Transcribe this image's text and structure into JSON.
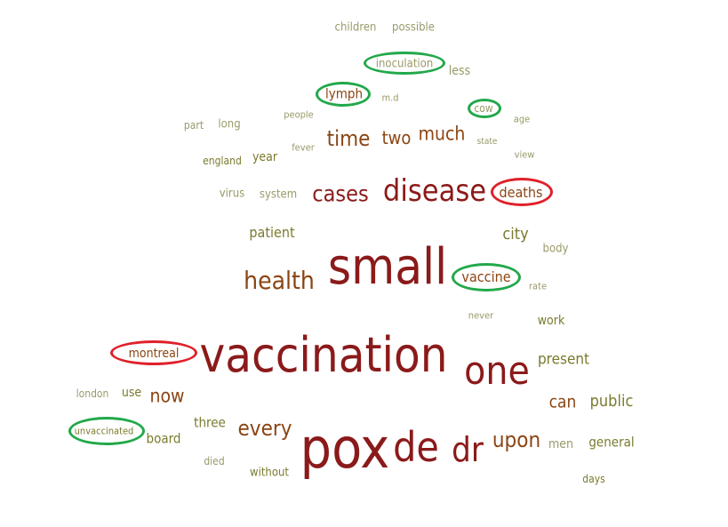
{
  "word_cloud": {
    "colors": {
      "large": "#8b1a1a",
      "medium": "#8b4513",
      "small": "#7a7a2e",
      "faint": "#9a9a6a",
      "highlight_green": "#22a84a",
      "highlight_red": "#e0202a"
    },
    "words": [
      {
        "id": "children",
        "text": "children"
      },
      {
        "id": "possible",
        "text": "possible"
      },
      {
        "id": "inoculation",
        "text": "inoculation"
      },
      {
        "id": "less",
        "text": "less"
      },
      {
        "id": "lymph",
        "text": "lymph"
      },
      {
        "id": "md",
        "text": "m.d"
      },
      {
        "id": "cow",
        "text": "cow"
      },
      {
        "id": "people",
        "text": "people"
      },
      {
        "id": "age",
        "text": "age"
      },
      {
        "id": "part",
        "text": "part"
      },
      {
        "id": "long",
        "text": "long"
      },
      {
        "id": "time",
        "text": "time"
      },
      {
        "id": "two",
        "text": "two"
      },
      {
        "id": "much",
        "text": "much"
      },
      {
        "id": "state",
        "text": "state"
      },
      {
        "id": "fever",
        "text": "fever"
      },
      {
        "id": "view",
        "text": "view"
      },
      {
        "id": "england",
        "text": "england"
      },
      {
        "id": "year",
        "text": "year"
      },
      {
        "id": "virus",
        "text": "virus"
      },
      {
        "id": "system",
        "text": "system"
      },
      {
        "id": "cases",
        "text": "cases"
      },
      {
        "id": "disease",
        "text": "disease"
      },
      {
        "id": "deaths",
        "text": "deaths"
      },
      {
        "id": "patient",
        "text": "patient"
      },
      {
        "id": "city",
        "text": "city"
      },
      {
        "id": "body",
        "text": "body"
      },
      {
        "id": "small",
        "text": "small"
      },
      {
        "id": "health",
        "text": "health"
      },
      {
        "id": "vaccine",
        "text": "vaccine"
      },
      {
        "id": "rate",
        "text": "rate"
      },
      {
        "id": "never",
        "text": "never"
      },
      {
        "id": "work",
        "text": "work"
      },
      {
        "id": "montreal",
        "text": "montreal"
      },
      {
        "id": "vaccination",
        "text": "vaccination"
      },
      {
        "id": "one",
        "text": "one"
      },
      {
        "id": "present",
        "text": "present"
      },
      {
        "id": "london",
        "text": "london"
      },
      {
        "id": "use",
        "text": "use"
      },
      {
        "id": "now",
        "text": "now"
      },
      {
        "id": "can",
        "text": "can"
      },
      {
        "id": "public",
        "text": "public"
      },
      {
        "id": "unvaccinated",
        "text": "unvaccinated"
      },
      {
        "id": "three",
        "text": "three"
      },
      {
        "id": "every",
        "text": "every"
      },
      {
        "id": "board",
        "text": "board"
      },
      {
        "id": "pox",
        "text": "pox"
      },
      {
        "id": "de",
        "text": "de"
      },
      {
        "id": "dr",
        "text": "dr"
      },
      {
        "id": "upon",
        "text": "upon"
      },
      {
        "id": "men",
        "text": "men"
      },
      {
        "id": "general",
        "text": "general"
      },
      {
        "id": "died",
        "text": "died"
      },
      {
        "id": "without",
        "text": "without"
      },
      {
        "id": "days",
        "text": "days"
      }
    ],
    "highlights": [
      {
        "word": "inoculation",
        "color": "green"
      },
      {
        "word": "lymph",
        "color": "green"
      },
      {
        "word": "cow",
        "color": "green"
      },
      {
        "word": "deaths",
        "color": "red"
      },
      {
        "word": "vaccine",
        "color": "green"
      },
      {
        "word": "montreal",
        "color": "red"
      },
      {
        "word": "unvaccinated",
        "color": "green"
      }
    ]
  }
}
